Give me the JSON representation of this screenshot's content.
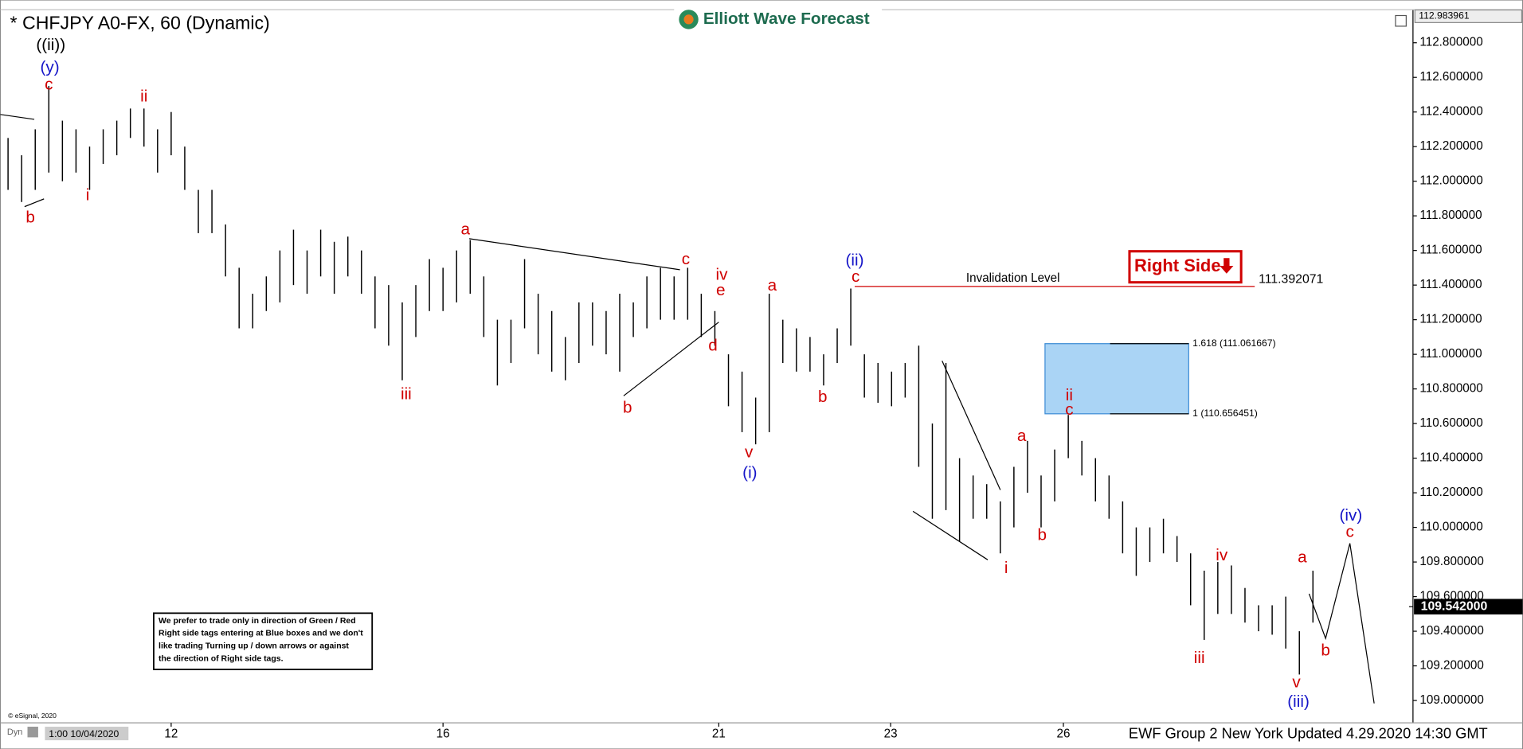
{
  "chart_data": {
    "type": "ohlc",
    "title": "* CHFJPY A0-FX, 60 (Dynamic)",
    "logo": "Elliott Wave Forecast",
    "color": "#000000",
    "bar_high": [
      112.25,
      112.15,
      112.3,
      112.55,
      112.35,
      112.3,
      112.2,
      112.3,
      112.35,
      112.42,
      112.42,
      112.3,
      112.4,
      112.2,
      111.95,
      111.95,
      111.75,
      111.5,
      111.35,
      111.45,
      111.6,
      111.72,
      111.6,
      111.72,
      111.65,
      111.68,
      111.6,
      111.45,
      111.4,
      111.3,
      111.4,
      111.55,
      111.5,
      111.6,
      111.66,
      111.45,
      111.2,
      111.2,
      111.55,
      111.35,
      111.25,
      111.1,
      111.3,
      111.3,
      111.25,
      111.35,
      111.3,
      111.45,
      111.5,
      111.45,
      111.5,
      111.35,
      111.25,
      111.0,
      110.9,
      110.75,
      111.35,
      111.2,
      111.15,
      111.1,
      111.0,
      111.15,
      111.38,
      111.0,
      110.95,
      110.9,
      110.95,
      111.05,
      110.6,
      110.95,
      110.4,
      110.3,
      110.25,
      110.15,
      110.35,
      110.5,
      110.3,
      110.45,
      110.65,
      110.5,
      110.4,
      110.3,
      110.15,
      110.0,
      110.0,
      110.05,
      109.95,
      109.85,
      109.75,
      109.8,
      109.78,
      109.65,
      109.55,
      109.55,
      109.6,
      109.4,
      109.75
    ],
    "bar_low": [
      111.95,
      111.88,
      111.95,
      112.05,
      112.0,
      112.05,
      111.95,
      112.1,
      112.15,
      112.25,
      112.2,
      112.05,
      112.15,
      111.95,
      111.7,
      111.7,
      111.45,
      111.15,
      111.15,
      111.25,
      111.3,
      111.4,
      111.35,
      111.45,
      111.35,
      111.45,
      111.35,
      111.15,
      111.05,
      110.85,
      111.1,
      111.25,
      111.25,
      111.3,
      111.35,
      111.1,
      110.82,
      110.95,
      111.15,
      111.0,
      110.9,
      110.85,
      110.95,
      111.05,
      111.0,
      110.9,
      111.1,
      111.15,
      111.2,
      111.2,
      111.2,
      111.1,
      111.05,
      110.7,
      110.55,
      110.48,
      110.55,
      110.95,
      110.9,
      110.9,
      110.82,
      110.95,
      111.05,
      110.75,
      110.72,
      110.7,
      110.75,
      110.35,
      110.05,
      110.1,
      109.92,
      110.05,
      110.05,
      109.85,
      110.0,
      110.2,
      110.0,
      110.15,
      110.4,
      110.3,
      110.15,
      110.05,
      109.85,
      109.72,
      109.8,
      109.85,
      109.8,
      109.55,
      109.35,
      109.5,
      109.5,
      109.45,
      109.4,
      109.38,
      109.3,
      109.15,
      109.45
    ],
    "ylim": [
      108.871,
      112.991
    ],
    "yticks": [
      {
        "value": 109.0,
        "label": "109.000000"
      },
      {
        "value": 109.2,
        "label": "109.200000"
      },
      {
        "value": 109.4,
        "label": "109.400000"
      },
      {
        "value": 109.6,
        "label": "109.600000"
      },
      {
        "value": 109.8,
        "label": "109.800000"
      },
      {
        "value": 110.0,
        "label": "110.000000"
      },
      {
        "value": 110.2,
        "label": "110.200000"
      },
      {
        "value": 110.4,
        "label": "110.400000"
      },
      {
        "value": 110.6,
        "label": "110.600000"
      },
      {
        "value": 110.8,
        "label": "110.800000"
      },
      {
        "value": 111.0,
        "label": "111.000000"
      },
      {
        "value": 111.2,
        "label": "111.200000"
      },
      {
        "value": 111.4,
        "label": "111.400000"
      },
      {
        "value": 111.6,
        "label": "111.600000"
      },
      {
        "value": 111.8,
        "label": "111.800000"
      },
      {
        "value": 112.0,
        "label": "112.000000"
      },
      {
        "value": 112.2,
        "label": "112.200000"
      },
      {
        "value": 112.4,
        "label": "112.400000"
      },
      {
        "value": 112.6,
        "label": "112.600000"
      },
      {
        "value": 112.8,
        "label": "112.800000"
      }
    ],
    "xlim": [
      -0.57,
      103.36
    ],
    "xticks": [
      {
        "value": 12.0,
        "label": "12"
      },
      {
        "value": 32.0,
        "label": "16"
      },
      {
        "value": 52.29,
        "label": "21"
      },
      {
        "value": 64.93,
        "label": "23"
      },
      {
        "value": 77.64,
        "label": "26"
      }
    ],
    "top_price": 112.983961,
    "last_price": {
      "value": 109.542,
      "label": "109.542000"
    },
    "invalidation": {
      "value": 111.392071,
      "label": "Invalidation Level"
    },
    "fib_levels": [
      {
        "value": 111.061667,
        "label": "1.618 (111.061667)"
      },
      {
        "value": 110.656451,
        "label": "1 (110.656451)"
      }
    ],
    "fib_color": "#aad4f5",
    "right_side": "Right Side",
    "wave_labels": [
      {
        "text": "((ii))",
        "color": "#000000"
      },
      {
        "text": "(y)",
        "color": "#1515c8"
      },
      {
        "text": "c",
        "color": "#d00000"
      },
      {
        "text": "b",
        "color": "#d00000"
      },
      {
        "text": "ii",
        "color": "#d00000"
      },
      {
        "text": "i",
        "color": "#d00000"
      },
      {
        "text": "iii",
        "color": "#d00000"
      },
      {
        "text": "a",
        "color": "#d00000"
      },
      {
        "text": "b",
        "color": "#d00000"
      },
      {
        "text": "c",
        "color": "#d00000"
      },
      {
        "text": "iv",
        "color": "#d00000"
      },
      {
        "text": "e",
        "color": "#d00000"
      },
      {
        "text": "d",
        "color": "#d00000"
      },
      {
        "text": "v",
        "color": "#d00000"
      },
      {
        "text": "(i)",
        "color": "#1515c8"
      },
      {
        "text": "a",
        "color": "#d00000"
      },
      {
        "text": "b",
        "color": "#d00000"
      },
      {
        "text": "(ii)",
        "color": "#1515c8"
      },
      {
        "text": "c",
        "color": "#d00000"
      },
      {
        "text": "a",
        "color": "#d00000"
      },
      {
        "text": "b",
        "color": "#d00000"
      },
      {
        "text": "i",
        "color": "#d00000"
      },
      {
        "text": "ii",
        "color": "#d00000"
      },
      {
        "text": "c",
        "color": "#d00000"
      },
      {
        "text": "iii",
        "color": "#d00000"
      },
      {
        "text": "iv",
        "color": "#d00000"
      },
      {
        "text": "v",
        "color": "#d00000"
      },
      {
        "text": "(iii)",
        "color": "#1515c8"
      },
      {
        "text": "a",
        "color": "#d00000"
      },
      {
        "text": "b",
        "color": "#d00000"
      },
      {
        "text": "(iv)",
        "color": "#1515c8"
      },
      {
        "text": "c",
        "color": "#d00000"
      }
    ],
    "disclaimer": [
      "We prefer to trade only in direction of Green / Red",
      "Right side tags entering at Blue boxes and we don't",
      "like trading Turning up / down arrows or against",
      "the direction of Right side tags."
    ],
    "copyright": "© eSignal, 2020",
    "dyn": "Dyn",
    "start_date": "1:00 10/04/2020",
    "footer": "EWF Group 2  New York Updated 4.29.2020 14:30 GMT"
  }
}
